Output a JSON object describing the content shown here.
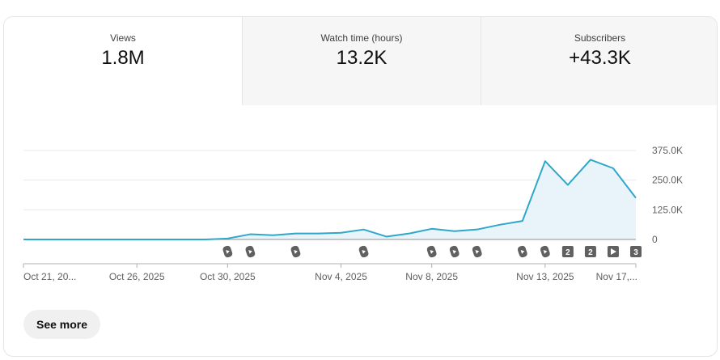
{
  "metrics": [
    {
      "label": "Views",
      "value": "1.8M"
    },
    {
      "label": "Watch time (hours)",
      "value": "13.2K"
    },
    {
      "label": "Subscribers",
      "value": "+43.3K"
    }
  ],
  "chart_data": {
    "type": "area",
    "title": "",
    "xlabel": "",
    "ylabel": "",
    "ylim": [
      0,
      375000
    ],
    "yticks": [
      0,
      125000,
      250000,
      375000
    ],
    "ytick_labels": [
      "0",
      "125.0K",
      "250.0K",
      "375.0K"
    ],
    "grid": true,
    "x": [
      "Oct 21, 2025",
      "Oct 22, 2025",
      "Oct 23, 2025",
      "Oct 24, 2025",
      "Oct 25, 2025",
      "Oct 26, 2025",
      "Oct 27, 2025",
      "Oct 28, 2025",
      "Oct 29, 2025",
      "Oct 30, 2025",
      "Oct 31, 2025",
      "Nov 1, 2025",
      "Nov 2, 2025",
      "Nov 3, 2025",
      "Nov 4, 2025",
      "Nov 5, 2025",
      "Nov 6, 2025",
      "Nov 7, 2025",
      "Nov 8, 2025",
      "Nov 9, 2025",
      "Nov 10, 2025",
      "Nov 11, 2025",
      "Nov 12, 2025",
      "Nov 13, 2025",
      "Nov 14, 2025",
      "Nov 15, 2025",
      "Nov 16, 2025",
      "Nov 17, 2025"
    ],
    "series": [
      {
        "values": [
          0,
          0,
          0,
          0,
          0,
          0,
          0,
          0,
          0,
          4000,
          22000,
          18000,
          25000,
          25000,
          28000,
          42000,
          12000,
          25000,
          45000,
          35000,
          42000,
          62000,
          78000,
          330000,
          230000,
          336000,
          300000,
          175000
        ]
      }
    ],
    "tick_labels": [
      {
        "x": "Oct 21, 2025",
        "label": "Oct 21, 20..."
      },
      {
        "x": "Oct 26, 2025",
        "label": "Oct 26, 2025"
      },
      {
        "x": "Oct 30, 2025",
        "label": "Oct 30, 2025"
      },
      {
        "x": "Nov 4, 2025",
        "label": "Nov 4, 2025"
      },
      {
        "x": "Nov 8, 2025",
        "label": "Nov 8, 2025"
      },
      {
        "x": "Nov 13, 2025",
        "label": "Nov 13, 2025"
      },
      {
        "x": "Nov 17, 2025",
        "label": "Nov 17,..."
      }
    ],
    "markers": [
      {
        "x": "Oct 30, 2025",
        "type": "shorts"
      },
      {
        "x": "Oct 31, 2025",
        "type": "shorts"
      },
      {
        "x": "Nov 2, 2025",
        "type": "shorts"
      },
      {
        "x": "Nov 5, 2025",
        "type": "shorts"
      },
      {
        "x": "Nov 8, 2025",
        "type": "shorts"
      },
      {
        "x": "Nov 9, 2025",
        "type": "shorts"
      },
      {
        "x": "Nov 10, 2025",
        "type": "shorts"
      },
      {
        "x": "Nov 12, 2025",
        "type": "shorts"
      },
      {
        "x": "Nov 13, 2025",
        "type": "shorts"
      },
      {
        "x": "Nov 14, 2025",
        "type": "count",
        "label": "2"
      },
      {
        "x": "Nov 15, 2025",
        "type": "count",
        "label": "2"
      },
      {
        "x": "Nov 16, 2025",
        "type": "play"
      },
      {
        "x": "Nov 17, 2025",
        "type": "count",
        "label": "3"
      }
    ],
    "colors": {
      "line": "#2ea7c9",
      "fill": "#e8f4fa",
      "grid": "#e8e8e8",
      "axis": "#909090",
      "marker": "#606060"
    }
  },
  "see_more_label": "See more"
}
